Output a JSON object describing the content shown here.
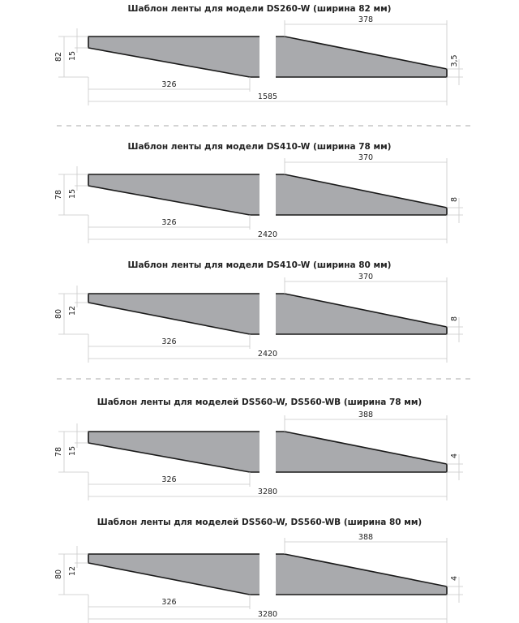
{
  "templates": [
    {
      "title": "Шаблон ленты для модели DS260-W (ширина 82 мм)",
      "width": "82",
      "taper_left": "15",
      "taper_length": "326",
      "total_length": "1585",
      "right_length": "378",
      "right_end": "3,5"
    },
    {
      "title": "Шаблон ленты для модели DS410-W (ширина 78 мм)",
      "width": "78",
      "taper_left": "15",
      "taper_length": "326",
      "total_length": "2420",
      "right_length": "370",
      "right_end": "8"
    },
    {
      "title": "Шаблон ленты для модели DS410-W (ширина 80 мм)",
      "width": "80",
      "taper_left": "12",
      "taper_length": "326",
      "total_length": "2420",
      "right_length": "370",
      "right_end": "8"
    },
    {
      "title": "Шаблон ленты для моделей DS560-W, DS560-WB (ширина 78 мм)",
      "width": "78",
      "taper_left": "15",
      "taper_length": "326",
      "total_length": "3280",
      "right_length": "388",
      "right_end": "4"
    },
    {
      "title": "Шаблон ленты для моделей DS560-W, DS560-WB (ширина 80 мм)",
      "width": "80",
      "taper_left": "12",
      "taper_length": "326",
      "total_length": "3280",
      "right_length": "388",
      "right_end": "4"
    }
  ],
  "colors": {
    "strip_fill": "#a9aaad",
    "edge": "#1a1a1a",
    "dimension_line": "#c8c8c8"
  }
}
